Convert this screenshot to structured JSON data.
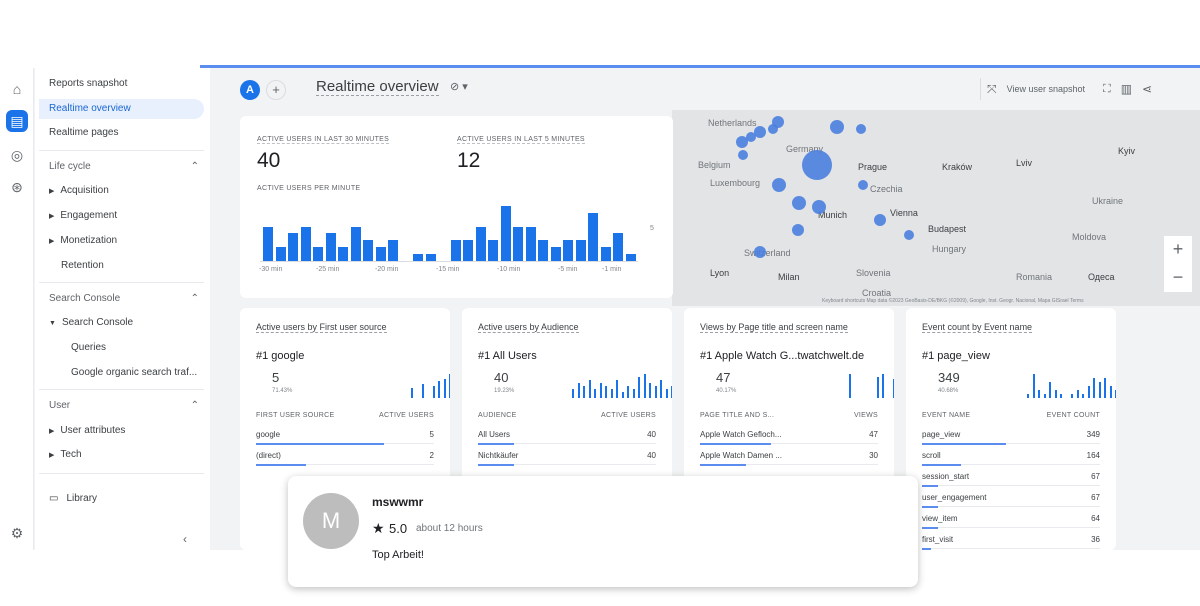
{
  "nav": {
    "items": [
      "Reports snapshot",
      "Realtime overview",
      "Realtime pages"
    ],
    "lifecycle_title": "Life cycle",
    "lifecycle": [
      "Acquisition",
      "Engagement",
      "Monetization",
      "Retention"
    ],
    "search_console_title": "Search Console",
    "search_console": "Search Console",
    "search_console_sub": [
      "Queries",
      "Google organic search traf..."
    ],
    "user_title": "User",
    "user": [
      "User attributes",
      "Tech"
    ],
    "library": "Library"
  },
  "toolbar": {
    "avatar": "A",
    "add": "+",
    "title": "Realtime overview",
    "view_snapshot": "View user snapshot"
  },
  "realtime": {
    "label_30": "ACTIVE USERS IN LAST 30 MINUTES",
    "value_30": "40",
    "label_5": "ACTIVE USERS IN LAST 5 MINUTES",
    "value_5": "12",
    "per_min_label": "ACTIVE USERS PER MINUTE",
    "y_tick": "5",
    "x_ticks": [
      "-30 min",
      "-25 min",
      "-20 min",
      "-15 min",
      "-10 min",
      "-5 min",
      "-1 min"
    ],
    "per_minute": [
      5,
      2,
      4,
      5,
      2,
      4,
      2,
      5,
      3,
      2,
      3,
      0,
      1,
      1,
      0,
      3,
      3,
      5,
      3,
      8,
      5,
      5,
      3,
      2,
      3,
      3,
      7,
      2,
      4,
      1
    ]
  },
  "map": {
    "cities": [
      "Netherlands",
      "Germany",
      "Belgium",
      "Luxembourg",
      "Prague",
      "Kraków",
      "Lviv",
      "Czechia",
      "Munich",
      "Vienna",
      "Budapest",
      "Hungary",
      "Switzerland",
      "Lyon",
      "Milan",
      "Slovenia",
      "Croatia",
      "Romania",
      "Moldova",
      "Ukraine",
      "Kyiv",
      "Одеса"
    ],
    "zoom_in": "+",
    "zoom_out": "−",
    "attribution": "Keyboard shortcuts   Map data ©2023 GeoBasis-DE/BKG (©2009), Google, Inst. Geogr. Nacional, Mapa GISrael   Terms"
  },
  "cards": [
    {
      "title": "Active users by First user source",
      "top": "#1  google",
      "value": "5",
      "pct": "71.43%",
      "col1": "FIRST USER SOURCE",
      "col2": "ACTIVE USERS",
      "rows": [
        {
          "label": "google",
          "value": "5",
          "share": 0.72
        },
        {
          "label": "(direct)",
          "value": "2",
          "share": 0.28
        }
      ]
    },
    {
      "title": "Active users by Audience",
      "top": "#1  All Users",
      "value": "40",
      "pct": "19.23%",
      "col1": "AUDIENCE",
      "col2": "ACTIVE USERS",
      "rows": [
        {
          "label": "All Users",
          "value": "40",
          "share": 0.2
        },
        {
          "label": "Nichtkäufer",
          "value": "40",
          "share": 0.2
        }
      ]
    },
    {
      "title": "Views by Page title and screen name",
      "top": "#1  Apple Watch G...twatchwelt.de",
      "value": "47",
      "pct": "40.17%",
      "col1": "PAGE TITLE AND S...",
      "col2": "VIEWS",
      "rows": [
        {
          "label": "Apple Watch Gefloch...",
          "value": "47",
          "share": 0.4
        },
        {
          "label": "Apple Watch Damen ...",
          "value": "30",
          "share": 0.26
        }
      ]
    },
    {
      "title": "Event count by Event name",
      "top": "#1  page_view",
      "value": "349",
      "pct": "40.68%",
      "col1": "EVENT NAME",
      "col2": "EVENT COUNT",
      "rows": [
        {
          "label": "page_view",
          "value": "349",
          "share": 0.47
        },
        {
          "label": "scroll",
          "value": "164",
          "share": 0.22
        },
        {
          "label": "session_start",
          "value": "67",
          "share": 0.09
        },
        {
          "label": "user_engagement",
          "value": "67",
          "share": 0.09
        },
        {
          "label": "view_item",
          "value": "64",
          "share": 0.09
        },
        {
          "label": "first_visit",
          "value": "36",
          "share": 0.05
        }
      ]
    }
  ],
  "review": {
    "avatar": "M",
    "name": "mswwmr",
    "rating": "5.0",
    "ago": "about 12 hours",
    "text": "Top Arbeit!"
  }
}
